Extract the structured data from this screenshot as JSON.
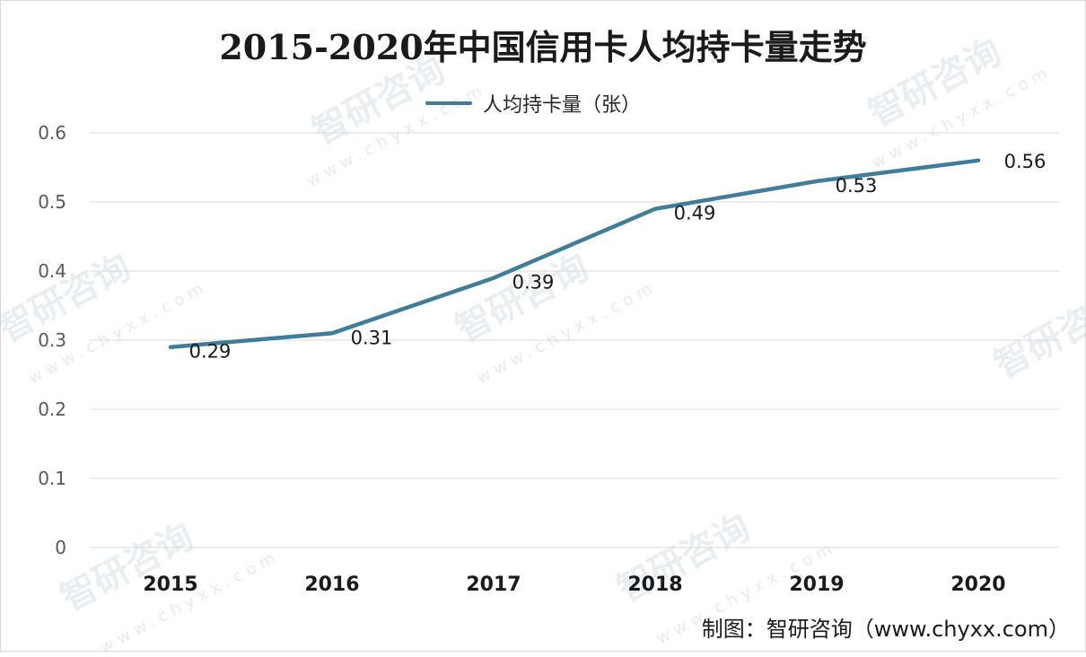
{
  "chart_data": {
    "type": "line",
    "title": "2015-2020年中国信用卡人均持卡量走势",
    "categories": [
      "2015",
      "2016",
      "2017",
      "2018",
      "2019",
      "2020"
    ],
    "series": [
      {
        "name": "人均持卡量（张）",
        "values": [
          0.29,
          0.31,
          0.39,
          0.49,
          0.53,
          0.56
        ],
        "color": "#3f7d9a"
      }
    ],
    "data_labels": [
      "0.29",
      "0.31",
      "0.39",
      "0.49",
      "0.53",
      "0.56"
    ],
    "ylim": [
      0,
      0.6
    ],
    "yticks": [
      "0",
      "0.1",
      "0.2",
      "0.3",
      "0.4",
      "0.5",
      "0.6"
    ],
    "grid": true,
    "legend_position": "top-center"
  },
  "source": "制图：智研咨询（www.chyxx.com）",
  "watermark": {
    "text": "智研咨询",
    "url": "www.chyxx.com"
  }
}
